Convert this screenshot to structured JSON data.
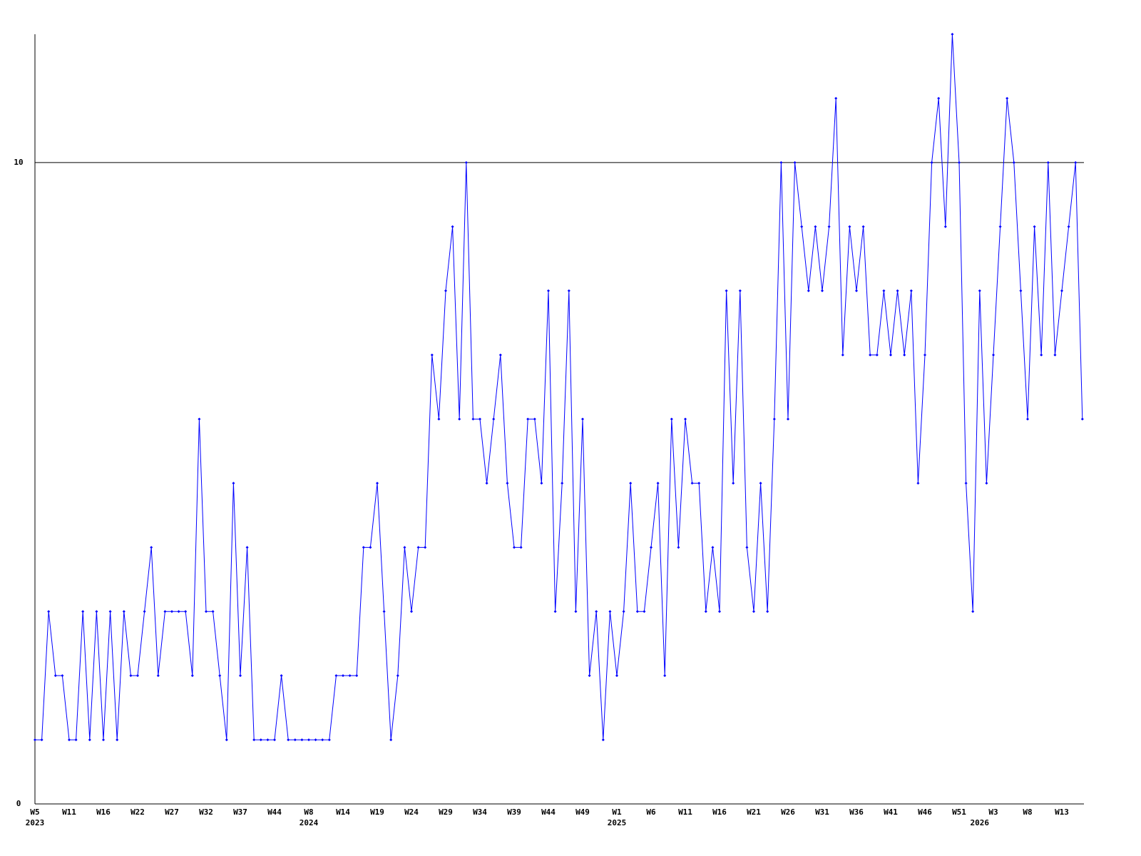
{
  "chart_data": {
    "type": "line",
    "categories": [
      "W5",
      null,
      null,
      null,
      null,
      "W11",
      null,
      null,
      null,
      null,
      "W16",
      null,
      null,
      null,
      null,
      "W22",
      null,
      null,
      null,
      null,
      "W27",
      null,
      null,
      null,
      null,
      "W32",
      null,
      null,
      null,
      null,
      "W37",
      null,
      null,
      null,
      null,
      "W44",
      null,
      null,
      null,
      null,
      "W8",
      null,
      null,
      null,
      null,
      "W14",
      null,
      null,
      null,
      null,
      "W19",
      null,
      null,
      null,
      null,
      "W24",
      null,
      null,
      null,
      null,
      "W29",
      null,
      null,
      null,
      null,
      "W34",
      null,
      null,
      null,
      null,
      "W39",
      null,
      null,
      null,
      null,
      "W44",
      null,
      null,
      null,
      null,
      "W49",
      null,
      null,
      null,
      null,
      "W1",
      null,
      null,
      null,
      null,
      "W6",
      null,
      null,
      null,
      null,
      "W11",
      null,
      null,
      null,
      null,
      "W16",
      null,
      null,
      null,
      null,
      "W21",
      null,
      null,
      null,
      null,
      "W26",
      null,
      null,
      null,
      null,
      "W31",
      null,
      null,
      null,
      null,
      "W36",
      null,
      null,
      null,
      null,
      "W41",
      null,
      null,
      null,
      null,
      "W46",
      null,
      null,
      null,
      null,
      "W51",
      null,
      null,
      null,
      null,
      "W3",
      null,
      null,
      null,
      null,
      "W8",
      null,
      null,
      null,
      null,
      "W13",
      null,
      null,
      null
    ],
    "years": [
      "2023",
      null,
      null,
      null,
      null,
      null,
      null,
      null,
      null,
      null,
      null,
      null,
      null,
      null,
      null,
      null,
      null,
      null,
      null,
      null,
      null,
      null,
      null,
      null,
      null,
      null,
      null,
      null,
      null,
      null,
      null,
      null,
      null,
      null,
      null,
      null,
      null,
      null,
      null,
      null,
      "2024",
      null,
      null,
      null,
      null,
      null,
      null,
      null,
      null,
      null,
      null,
      null,
      null,
      null,
      null,
      null,
      null,
      null,
      null,
      null,
      null,
      null,
      null,
      null,
      null,
      null,
      null,
      null,
      null,
      null,
      null,
      null,
      null,
      null,
      null,
      null,
      null,
      null,
      null,
      null,
      null,
      null,
      null,
      null,
      null,
      "2025",
      null,
      null,
      null,
      null,
      null,
      null,
      null,
      null,
      null,
      null,
      null,
      null,
      null,
      null,
      null,
      null,
      null,
      null,
      null,
      null,
      null,
      null,
      null,
      null,
      null,
      null,
      null,
      null,
      null,
      null,
      null,
      null,
      null,
      null,
      null,
      null,
      null,
      null,
      null,
      null,
      null,
      null,
      null,
      null,
      null,
      null,
      null,
      null,
      null,
      null,
      null,
      null,
      "2026",
      null,
      null,
      null,
      null,
      null,
      null,
      null,
      null,
      null,
      null,
      null,
      null,
      null,
      null,
      null
    ],
    "values": [
      1,
      1,
      3,
      2,
      2,
      1,
      1,
      3,
      1,
      3,
      1,
      3,
      1,
      3,
      2,
      2,
      3,
      4,
      2,
      3,
      3,
      3,
      3,
      2,
      6,
      3,
      3,
      2,
      1,
      5,
      2,
      4,
      1,
      1,
      1,
      1,
      2,
      1,
      1,
      1,
      1,
      1,
      1,
      1,
      2,
      2,
      2,
      2,
      4,
      4,
      5,
      3,
      1,
      2,
      4,
      3,
      4,
      4,
      7,
      6,
      8,
      9,
      6,
      10,
      6,
      6,
      5,
      6,
      7,
      5,
      4,
      4,
      6,
      6,
      5,
      8,
      3,
      5,
      8,
      3,
      6,
      2,
      3,
      1,
      3,
      2,
      3,
      5,
      3,
      3,
      4,
      5,
      2,
      6,
      4,
      6,
      5,
      5,
      3,
      4,
      3,
      8,
      5,
      8,
      4,
      3,
      5,
      3,
      6,
      10,
      6,
      10,
      9,
      8,
      9,
      8,
      9,
      11,
      7,
      9,
      8,
      9,
      7,
      7,
      8,
      7,
      8,
      7,
      8,
      5,
      7,
      10,
      11,
      9,
      12,
      10,
      5,
      3,
      8,
      5,
      7,
      9,
      11,
      10,
      8,
      6,
      9,
      7,
      10,
      7,
      8,
      9,
      10,
      6
    ],
    "color": "#0000ff",
    "ylim": [
      0,
      12
    ],
    "yticks": [
      0,
      10
    ],
    "grid": true
  }
}
